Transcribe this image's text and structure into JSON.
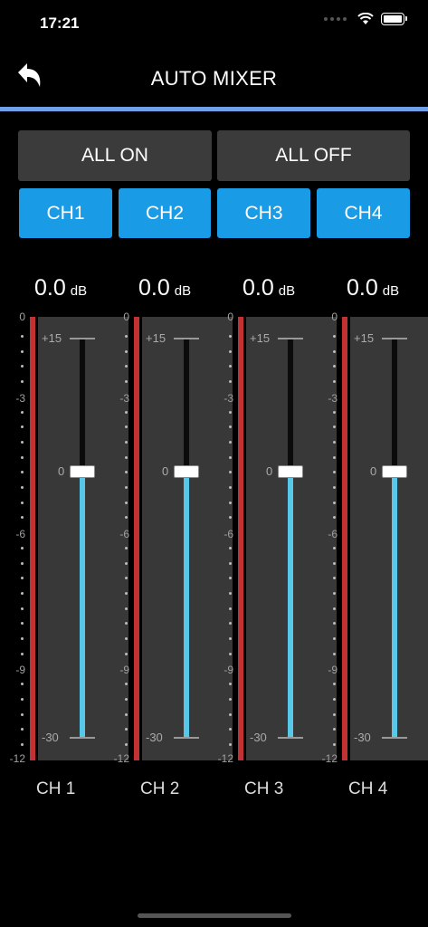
{
  "status": {
    "time": "17:21"
  },
  "header": {
    "title": "AUTO MIXER",
    "back_icon": "back-arrow-icon"
  },
  "buttons": {
    "all_on": "ALL ON",
    "all_off": "ALL OFF"
  },
  "channel_toggles": [
    "CH1",
    "CH2",
    "CH3",
    "CH4"
  ],
  "scale": {
    "labels": [
      "0",
      "-3",
      "-6",
      "-9",
      "-12"
    ]
  },
  "fader_marks": {
    "top": "+15",
    "mid": "0",
    "bottom": "-30"
  },
  "channels": [
    {
      "level": "0.0",
      "unit": "dB",
      "name": "CH 1"
    },
    {
      "level": "0.0",
      "unit": "dB",
      "name": "CH 2"
    },
    {
      "level": "0.0",
      "unit": "dB",
      "name": "CH 3"
    },
    {
      "level": "0.0",
      "unit": "dB",
      "name": "CH 4"
    }
  ],
  "colors": {
    "accent": "#1a9be6",
    "meter": "#c23232",
    "fader_fill": "#57c8e8",
    "header_line": "#6fa0e8"
  }
}
